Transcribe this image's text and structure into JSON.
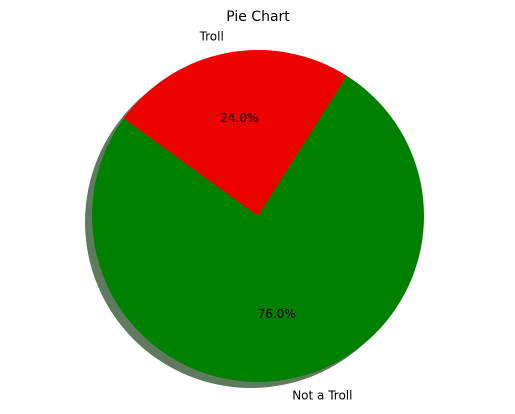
{
  "chart_data": {
    "type": "pie",
    "title": "Pie Chart",
    "slices": [
      {
        "label": "Troll",
        "value": 24.0,
        "pct_label": "24.0%",
        "color": "#ee0000"
      },
      {
        "label": "Not a Troll",
        "value": 76.0,
        "pct_label": "76.0%",
        "color": "#008000"
      }
    ],
    "shadow": true,
    "shadow_color": "#5f7a5f",
    "legend": "none"
  }
}
